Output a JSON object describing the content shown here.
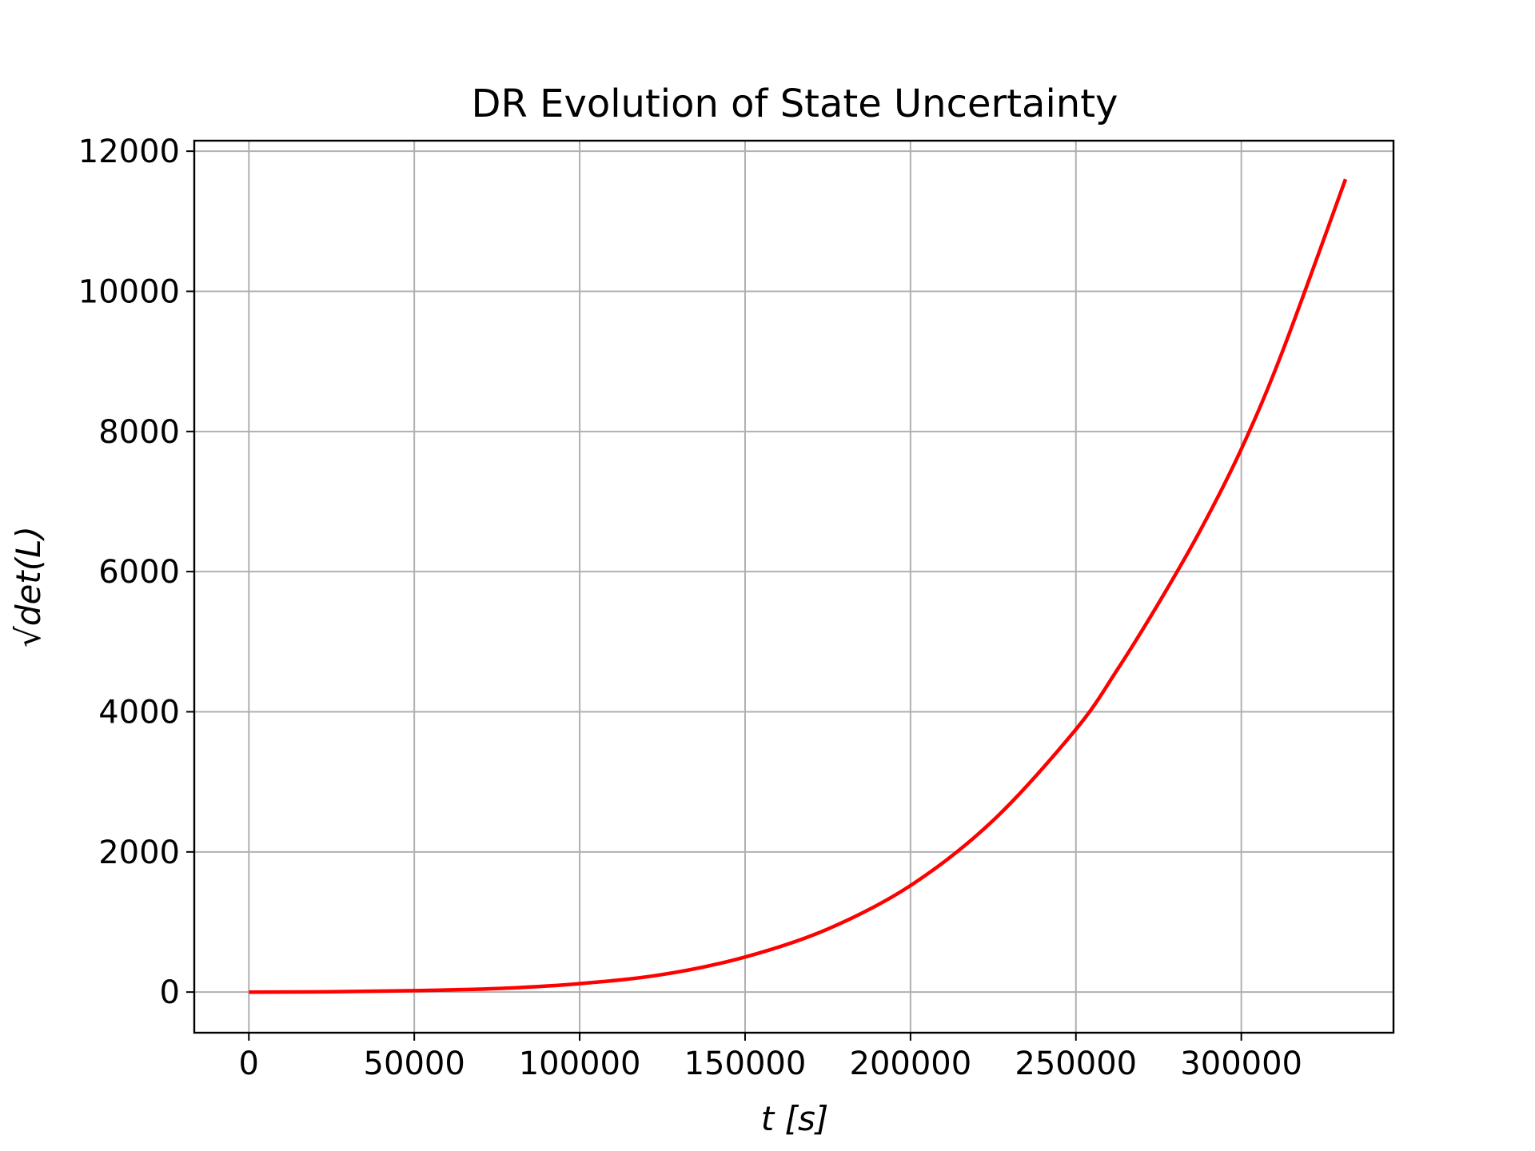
{
  "chart_data": {
    "type": "line",
    "title": "DR Evolution of State Uncertainty",
    "xlabel": "t [s]",
    "ylabel": "√det(L)",
    "xlim": [
      -16500,
      346000
    ],
    "ylim": [
      -580,
      12150
    ],
    "xticks": [
      0,
      50000,
      100000,
      150000,
      200000,
      250000,
      300000
    ],
    "yticks": [
      0,
      2000,
      4000,
      6000,
      8000,
      10000,
      12000
    ],
    "grid": true,
    "legend": "none",
    "series": [
      {
        "color": "#ff0000",
        "x": [
          0,
          25000,
          50000,
          75000,
          100000,
          125000,
          150000,
          175000,
          200000,
          225000,
          250000,
          262500,
          275000,
          287500,
          300000,
          312500,
          331500
        ],
        "y": [
          0,
          4,
          20,
          50,
          120,
          250,
          500,
          900,
          1520,
          2450,
          3750,
          4600,
          5550,
          6580,
          7750,
          9150,
          11600
        ]
      }
    ]
  }
}
